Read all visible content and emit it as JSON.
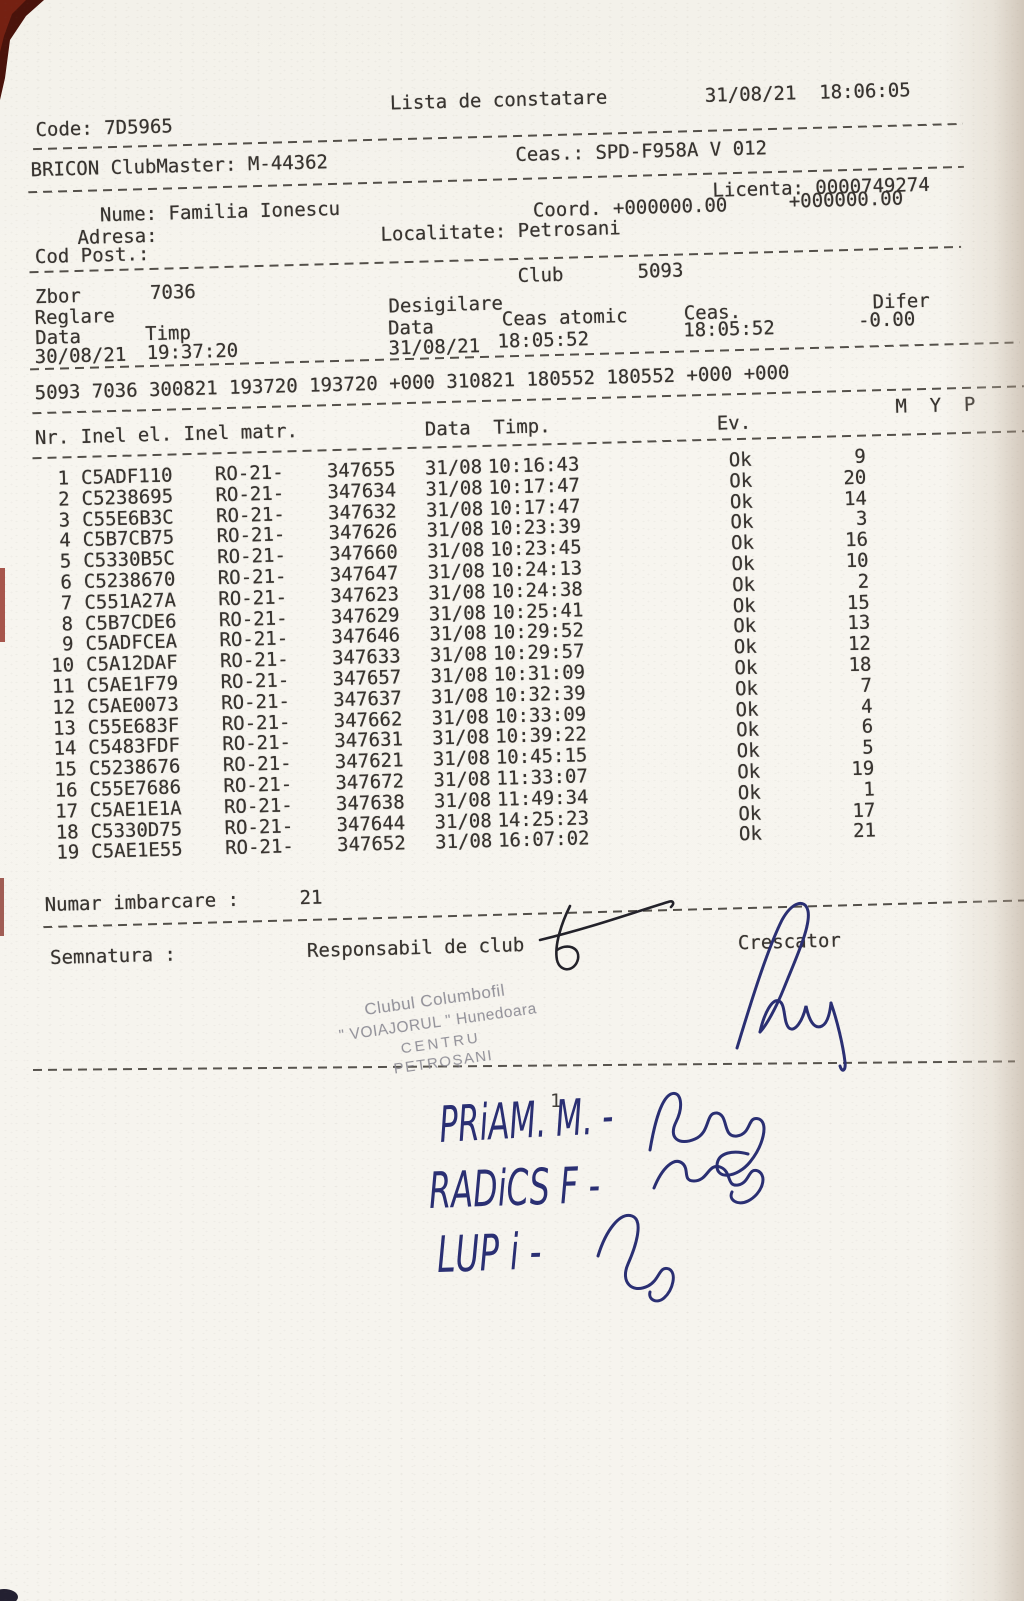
{
  "colors": {
    "paper": "#f6f4ee",
    "ink": "#383430",
    "pen_blue": "#2a2f73",
    "pen_black": "#23222a",
    "stamp_gray": "#8b8a93",
    "edge_red": "#6b1d10"
  },
  "header": {
    "title": "Lista de constatare",
    "datetime": "31/08/21  18:06:05",
    "code": "Code: 7D5965",
    "device": "BRICON ClubMaster: M-44362",
    "clock_device": "Ceas.: SPD-F958A V 012",
    "licenta": "Licenta: 0000749274",
    "nume": "Nume: Familia Ionescu",
    "coord": "Coord. +000000.00",
    "coord2": "+000000.00",
    "adresa": "Adresa:",
    "localitate": "Localitate: Petrosani",
    "cod_post": "Cod Post.:"
  },
  "flight": {
    "club_label": "Club",
    "club_value": "5093",
    "zbor_label": "Zbor",
    "zbor_value": "7036",
    "reglare_label": "Reglare",
    "desigilare_label": "Desigilare",
    "difer_label": "Difer",
    "difer_value": "-0.00",
    "data_label_left": "Data",
    "timp_label": "Timp",
    "data_label_mid": "Data",
    "ceas_atomic_label": "Ceas atomic",
    "ceas_label": "Ceas.",
    "ceas_value": "18:05:52",
    "reglare_data": "30/08/21",
    "reglare_timp": "19:37:20",
    "desigilare_data": "31/08/21",
    "desigilare_ceas_atomic": "18:05:52",
    "raw_line": "5093 7036 300821 193720 193720 +000 310821 180552 180552 +000 +000"
  },
  "table": {
    "col_left": "Nr. Inel el. Inel matr.",
    "col_mid": "Data  Timp.",
    "col_ev": "Ev.",
    "col_myp": "M  Y  P",
    "rows": [
      {
        "nr": "1",
        "inel_el": "C5ADF110",
        "serie": "RO-21-",
        "matr": "347655",
        "data": "31/08",
        "timp": "10:16:43",
        "ev": "Ok",
        "ord": "9"
      },
      {
        "nr": "2",
        "inel_el": "C5238695",
        "serie": "RO-21-",
        "matr": "347634",
        "data": "31/08",
        "timp": "10:17:47",
        "ev": "Ok",
        "ord": "20"
      },
      {
        "nr": "3",
        "inel_el": "C55E6B3C",
        "serie": "RO-21-",
        "matr": "347632",
        "data": "31/08",
        "timp": "10:17:47",
        "ev": "Ok",
        "ord": "14"
      },
      {
        "nr": "4",
        "inel_el": "C5B7CB75",
        "serie": "RO-21-",
        "matr": "347626",
        "data": "31/08",
        "timp": "10:23:39",
        "ev": "Ok",
        "ord": "3"
      },
      {
        "nr": "5",
        "inel_el": "C5330B5C",
        "serie": "RO-21-",
        "matr": "347660",
        "data": "31/08",
        "timp": "10:23:45",
        "ev": "Ok",
        "ord": "16"
      },
      {
        "nr": "6",
        "inel_el": "C5238670",
        "serie": "RO-21-",
        "matr": "347647",
        "data": "31/08",
        "timp": "10:24:13",
        "ev": "Ok",
        "ord": "10"
      },
      {
        "nr": "7",
        "inel_el": "C551A27A",
        "serie": "RO-21-",
        "matr": "347623",
        "data": "31/08",
        "timp": "10:24:38",
        "ev": "Ok",
        "ord": "2"
      },
      {
        "nr": "8",
        "inel_el": "C5B7CDE6",
        "serie": "RO-21-",
        "matr": "347629",
        "data": "31/08",
        "timp": "10:25:41",
        "ev": "Ok",
        "ord": "15"
      },
      {
        "nr": "9",
        "inel_el": "C5ADFCEA",
        "serie": "RO-21-",
        "matr": "347646",
        "data": "31/08",
        "timp": "10:29:52",
        "ev": "Ok",
        "ord": "13"
      },
      {
        "nr": "10",
        "inel_el": "C5A12DAF",
        "serie": "RO-21-",
        "matr": "347633",
        "data": "31/08",
        "timp": "10:29:57",
        "ev": "Ok",
        "ord": "12"
      },
      {
        "nr": "11",
        "inel_el": "C5AE1F79",
        "serie": "RO-21-",
        "matr": "347657",
        "data": "31/08",
        "timp": "10:31:09",
        "ev": "Ok",
        "ord": "18"
      },
      {
        "nr": "12",
        "inel_el": "C5AE0073",
        "serie": "RO-21-",
        "matr": "347637",
        "data": "31/08",
        "timp": "10:32:39",
        "ev": "Ok",
        "ord": "7"
      },
      {
        "nr": "13",
        "inel_el": "C55E683F",
        "serie": "RO-21-",
        "matr": "347662",
        "data": "31/08",
        "timp": "10:33:09",
        "ev": "Ok",
        "ord": "4"
      },
      {
        "nr": "14",
        "inel_el": "C5483FDF",
        "serie": "RO-21-",
        "matr": "347631",
        "data": "31/08",
        "timp": "10:39:22",
        "ev": "Ok",
        "ord": "6"
      },
      {
        "nr": "15",
        "inel_el": "C5238676",
        "serie": "RO-21-",
        "matr": "347621",
        "data": "31/08",
        "timp": "10:45:15",
        "ev": "Ok",
        "ord": "5"
      },
      {
        "nr": "16",
        "inel_el": "C55E7686",
        "serie": "RO-21-",
        "matr": "347672",
        "data": "31/08",
        "timp": "11:33:07",
        "ev": "Ok",
        "ord": "19"
      },
      {
        "nr": "17",
        "inel_el": "C5AE1E1A",
        "serie": "RO-21-",
        "matr": "347638",
        "data": "31/08",
        "timp": "11:49:34",
        "ev": "Ok",
        "ord": "1"
      },
      {
        "nr": "18",
        "inel_el": "C5330D75",
        "serie": "RO-21-",
        "matr": "347644",
        "data": "31/08",
        "timp": "14:25:23",
        "ev": "Ok",
        "ord": "17"
      },
      {
        "nr": "19",
        "inel_el": "C5AE1E55",
        "serie": "RO-21-",
        "matr": "347652",
        "data": "31/08",
        "timp": "16:07:02",
        "ev": "Ok",
        "ord": "21"
      }
    ]
  },
  "footer": {
    "numar_label": "Numar imbarcare :",
    "numar_value": "21",
    "semnatura": "Semnatura :",
    "responsabil": "Responsabil de club",
    "crescator": "Crescator",
    "page_number": "1"
  },
  "stamp": {
    "line1": "Clubul Columbofil",
    "line2": "\" VOIAJORUL \"  Hunedoara",
    "line3": "CENTRU",
    "line4": "PETROŞANI"
  },
  "handwriting": {
    "line1": "PRiAM. M. -",
    "line2": "RADiCS F -",
    "line3": "LUP i -"
  }
}
